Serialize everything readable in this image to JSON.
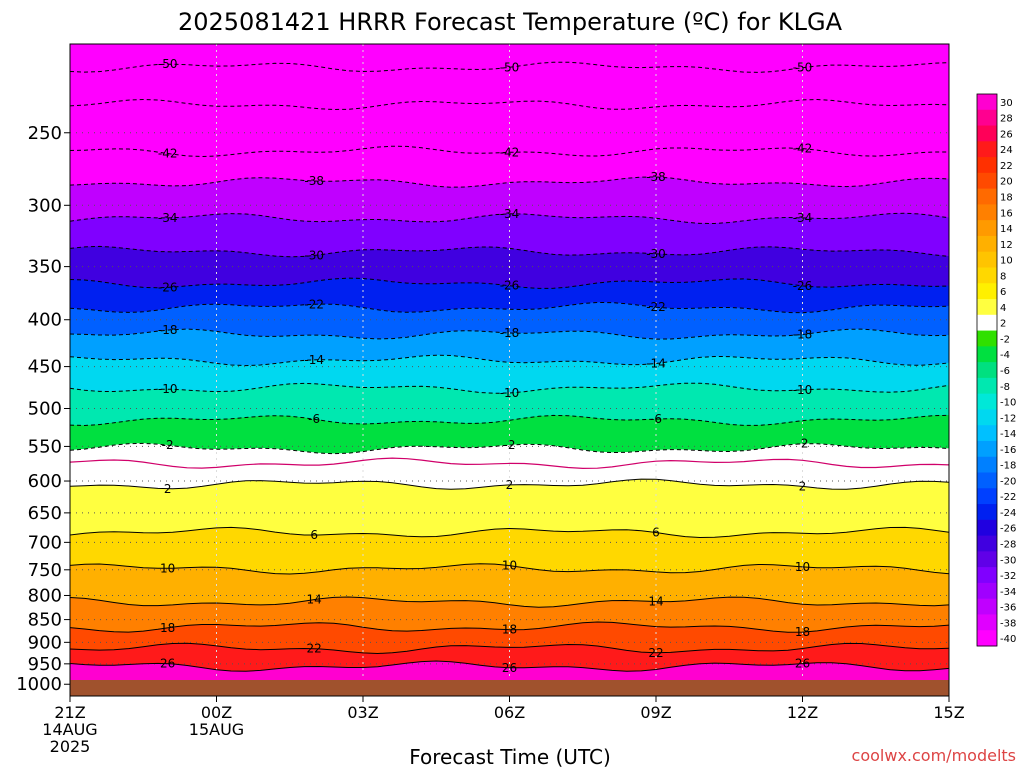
{
  "chart_data": {
    "type": "contour",
    "title": "2025081421 HRRR Forecast Temperature (ºC) for KLGA",
    "xlabel": "Forecast Time (UTC)",
    "ylabel": "",
    "credit": "coolwx.com/modelts",
    "y_axis": {
      "unit": "hPa",
      "scale": "log",
      "inverted": true,
      "range": [
        200,
        1030
      ],
      "ticks": [
        250,
        300,
        350,
        400,
        450,
        500,
        550,
        600,
        650,
        700,
        750,
        800,
        850,
        900,
        950,
        1000
      ]
    },
    "x_axis": {
      "range_hours": [
        0,
        18
      ],
      "ticks": [
        {
          "hour": 0,
          "lines": [
            "21Z",
            "14AUG",
            "2025"
          ]
        },
        {
          "hour": 3,
          "lines": [
            "00Z",
            "15AUG"
          ]
        },
        {
          "hour": 6,
          "lines": [
            "03Z"
          ]
        },
        {
          "hour": 9,
          "lines": [
            "06Z"
          ]
        },
        {
          "hour": 12,
          "lines": [
            "09Z"
          ]
        },
        {
          "hour": 15,
          "lines": [
            "12Z"
          ]
        },
        {
          "hour": 18,
          "lines": [
            "15Z"
          ]
        }
      ]
    },
    "colorbar": {
      "values": [
        30,
        28,
        26,
        24,
        22,
        20,
        18,
        16,
        14,
        12,
        10,
        8,
        6,
        4,
        2,
        -2,
        -4,
        -6,
        -8,
        -10,
        -12,
        -14,
        -16,
        -18,
        -20,
        -22,
        -24,
        -26,
        -28,
        -30,
        -32,
        -34,
        -36,
        -38,
        -40
      ],
      "colors": [
        "#ff00d0",
        "#ff0090",
        "#ff0058",
        "#ff1a1a",
        "#ff3000",
        "#ff4a00",
        "#ff6a00",
        "#ff8000",
        "#ff9a00",
        "#ffb000",
        "#ffc400",
        "#ffd800",
        "#fff000",
        "#ffff40",
        "#ffffff",
        "#30e000",
        "#00e040",
        "#00e080",
        "#00e8b0",
        "#00e8d8",
        "#00d8f0",
        "#00c0ff",
        "#00a0ff",
        "#0080ff",
        "#0060ff",
        "#0040ff",
        "#0020f0",
        "#2000e0",
        "#4000e0",
        "#6000e8",
        "#8000ff",
        "#a000ff",
        "#c000ff",
        "#e000ff",
        "#ff00ff"
      ]
    },
    "contours": [
      {
        "value": -50,
        "label": "-50",
        "pressure": 212
      },
      {
        "value": -46,
        "label": "",
        "pressure": 233
      },
      {
        "value": -42,
        "label": "-42",
        "pressure": 262
      },
      {
        "value": -38,
        "label": "-38",
        "pressure": 283
      },
      {
        "value": -34,
        "label": "-34",
        "pressure": 310
      },
      {
        "value": -30,
        "label": "-30",
        "pressure": 337
      },
      {
        "value": -26,
        "label": "-26",
        "pressure": 365
      },
      {
        "value": -22,
        "label": "-22",
        "pressure": 388
      },
      {
        "value": -18,
        "label": "-18",
        "pressure": 415
      },
      {
        "value": -14,
        "label": "-14",
        "pressure": 443
      },
      {
        "value": -10,
        "label": "-10",
        "pressure": 475
      },
      {
        "value": -6,
        "label": "-6",
        "pressure": 515
      },
      {
        "value": -2,
        "label": "-2",
        "pressure": 553
      },
      {
        "value": 0,
        "label": "",
        "pressure": 574
      },
      {
        "value": 2,
        "label": "2",
        "pressure": 605
      },
      {
        "value": 6,
        "label": "6",
        "pressure": 683
      },
      {
        "value": 10,
        "label": "10",
        "pressure": 748
      },
      {
        "value": 14,
        "label": "14",
        "pressure": 813
      },
      {
        "value": 18,
        "label": "18",
        "pressure": 866
      },
      {
        "value": 22,
        "label": "22",
        "pressure": 914
      },
      {
        "value": 26,
        "label": "26",
        "pressure": 956
      }
    ],
    "grid": true
  }
}
